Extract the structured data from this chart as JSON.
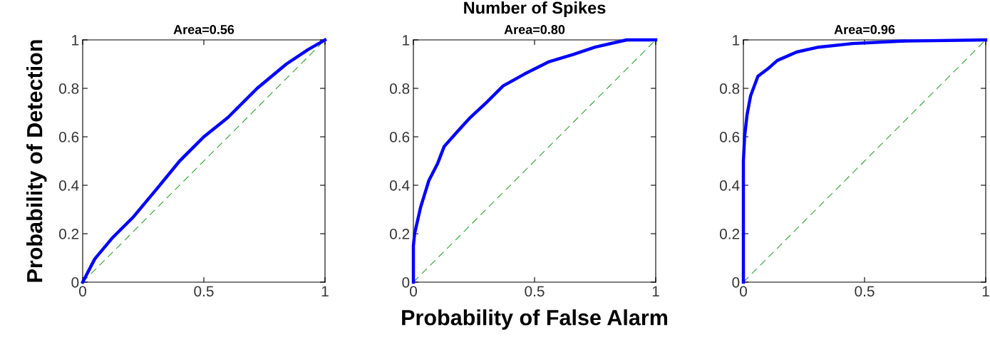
{
  "chart_data": [
    {
      "type": "line",
      "title": "Area=0.56",
      "ylabel": "Probability of Detection",
      "xlim": [
        0,
        1
      ],
      "ylim": [
        0,
        1
      ],
      "xticks": [
        0,
        0.5,
        1
      ],
      "yticks": [
        0,
        0.2,
        0.4,
        0.6,
        0.8,
        1
      ],
      "grid": false,
      "legend": false,
      "series": [
        {
          "color": "#0000ff",
          "x": [
            0,
            0.05,
            0.12,
            0.21,
            0.31,
            0.4,
            0.5,
            0.6,
            0.72,
            0.84,
            0.93,
            1
          ],
          "values": [
            0,
            0.096,
            0.18,
            0.27,
            0.39,
            0.5,
            0.6,
            0.68,
            0.8,
            0.9,
            0.96,
            1
          ],
          "line_style": "solid"
        },
        {
          "color": "#2ca02c",
          "x": [
            0,
            1
          ],
          "values": [
            0,
            1
          ],
          "line_style": "dashed"
        }
      ]
    },
    {
      "type": "line",
      "title": "Number of Spikes",
      "subtitle": "Area=0.80",
      "xlabel": "Probability of False Alarm",
      "xlim": [
        0,
        1
      ],
      "ylim": [
        0,
        1
      ],
      "xticks": [
        0,
        0.5,
        1
      ],
      "yticks": [
        0,
        0.2,
        0.4,
        0.6,
        0.8,
        1
      ],
      "grid": false,
      "legend": false,
      "series": [
        {
          "color": "#0000ff",
          "x": [
            0,
            0,
            0.005,
            0.03,
            0.064,
            0.1,
            0.127,
            0.18,
            0.235,
            0.3,
            0.37,
            0.46,
            0.56,
            0.66,
            0.75,
            0.88,
            1
          ],
          "values": [
            0,
            0.15,
            0.2,
            0.31,
            0.42,
            0.49,
            0.56,
            0.62,
            0.68,
            0.74,
            0.81,
            0.86,
            0.91,
            0.94,
            0.97,
            1,
            1
          ],
          "line_style": "solid"
        },
        {
          "color": "#2ca02c",
          "x": [
            0,
            1
          ],
          "values": [
            0,
            1
          ],
          "line_style": "dashed"
        }
      ]
    },
    {
      "type": "line",
      "title": "Area=0.96",
      "xlim": [
        0,
        1
      ],
      "ylim": [
        0,
        1
      ],
      "xticks": [
        0,
        0.5,
        1
      ],
      "yticks": [
        0,
        0.2,
        0.4,
        0.6,
        0.8,
        1
      ],
      "grid": false,
      "legend": false,
      "series": [
        {
          "color": "#0000ff",
          "x": [
            0,
            0,
            0.005,
            0.015,
            0.03,
            0.06,
            0.1,
            0.14,
            0.22,
            0.31,
            0.45,
            0.65,
            1
          ],
          "values": [
            0,
            0.5,
            0.6,
            0.69,
            0.77,
            0.85,
            0.88,
            0.915,
            0.95,
            0.97,
            0.985,
            0.995,
            1
          ],
          "line_style": "solid"
        },
        {
          "color": "#2ca02c",
          "x": [
            0,
            1
          ],
          "values": [
            0,
            1
          ],
          "line_style": "dashed"
        }
      ]
    }
  ]
}
